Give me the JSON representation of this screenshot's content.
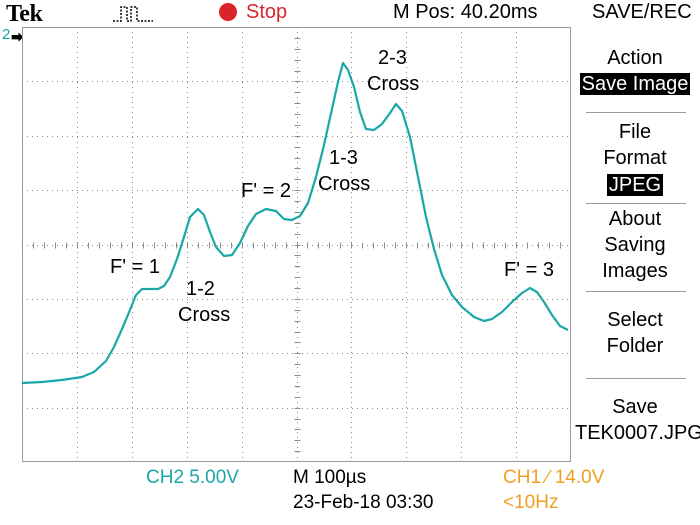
{
  "topbar": {
    "brand": "Tek",
    "status": "Stop",
    "position": "M Pos: 40.20ms",
    "menu_title": "SAVE/REC"
  },
  "channel_marker": "2",
  "colors": {
    "trace": "#1aa7a8",
    "ch1": "#f0a020",
    "stop": "#d9242a",
    "grid": "#9a9a9a"
  },
  "annotations": {
    "f1": "F' = 1",
    "c12_a": "1-2",
    "c12_b": "Cross",
    "f2": "F' = 2",
    "c13_a": "1-3",
    "c13_b": "Cross",
    "c23_a": "2-3",
    "c23_b": "Cross",
    "f3": "F' = 3"
  },
  "menu": {
    "action_label": "Action",
    "action_value": "Save Image",
    "file_label_1": "File",
    "file_label_2": "Format",
    "file_value": "JPEG",
    "about_1": "About",
    "about_2": "Saving",
    "about_3": "Images",
    "select_1": "Select",
    "select_2": "Folder",
    "save_1": "Save",
    "save_2": "TEK0007.JPG"
  },
  "bottom": {
    "ch2_scale": "CH2  5.00V",
    "timebase": "M 100µs",
    "ch1_trigger": "CH1  ∕  14.0V",
    "datetime": "23-Feb-18 03:30",
    "frequency": "<10Hz"
  }
}
